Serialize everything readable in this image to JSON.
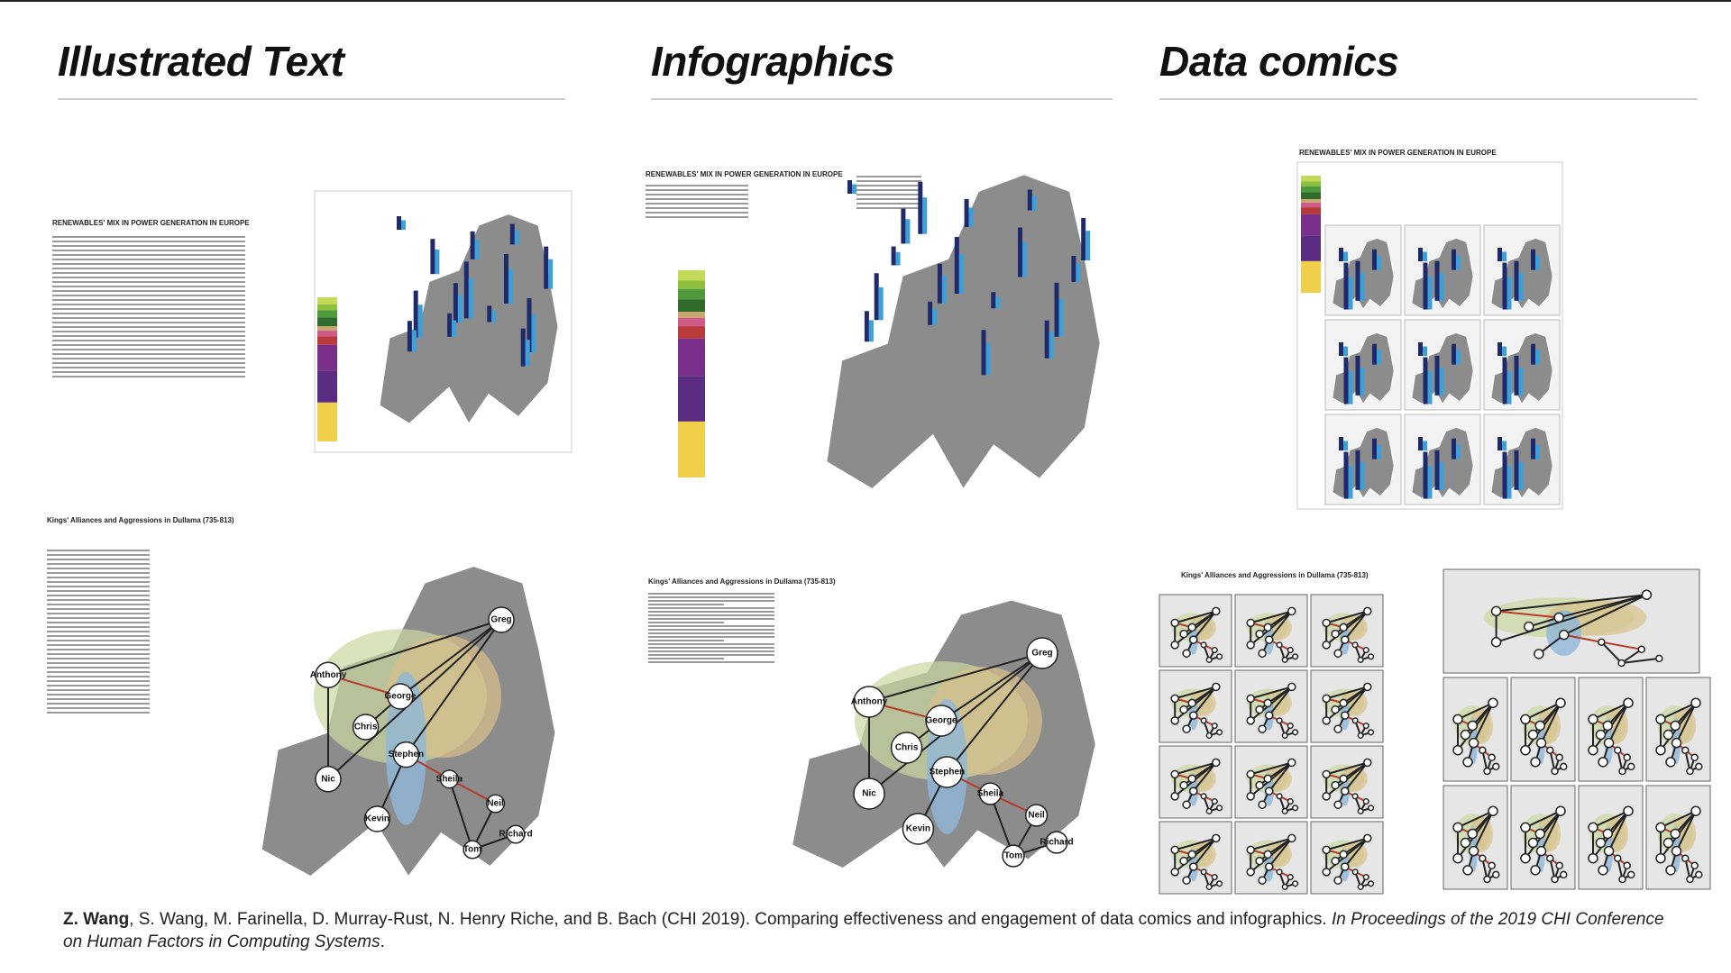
{
  "columns": [
    {
      "title": "Illustrated Text"
    },
    {
      "title": "Infographics"
    },
    {
      "title": "Data comics"
    }
  ],
  "energy_title": "RENEWABLES' MIX IN POWER GENERATION IN EUROPE",
  "kings_title": "Kings' Alliances and Aggressions in Dullama (735-813)",
  "nodes": [
    "Greg",
    "Anthony",
    "George",
    "Chris",
    "Nic",
    "Stephen",
    "Kevin",
    "Sheila",
    "Neil",
    "Tom",
    "Richard"
  ],
  "citation": {
    "lead": "Z. Wang",
    "authors": ", S. Wang, M. Farinella, D. Murray-Rust, N. Henry Riche, and B. Bach (CHI 2019). Comparing effectiveness and engagement of data comics and infographics. ",
    "venue": "In Proceedings of the 2019 CHI Conference on Human Factors in Computing Systems",
    "end": "."
  }
}
